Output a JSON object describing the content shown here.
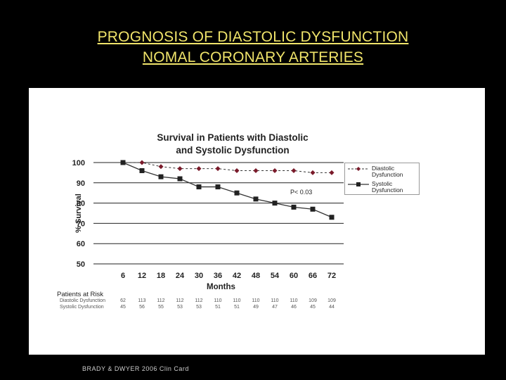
{
  "slide": {
    "title_line1": "PROGNOSIS OF DIASTOLIC DYSFUNCTION",
    "title_line2": "NOMAL CORONARY ARTERIES",
    "credit": "BRADY & DWYER 2006 Clin Card",
    "colors": {
      "background": "#000000",
      "title": "#f0e46a"
    }
  },
  "chart_data": {
    "type": "line",
    "title_line1": "Survival in Patients with Diastolic",
    "title_line2": "and Systolic Dysfunction",
    "xlabel": "Months",
    "ylabel": "% Survival",
    "x": [
      6,
      12,
      18,
      24,
      30,
      36,
      42,
      48,
      54,
      60,
      66,
      72
    ],
    "xticks": [
      "6",
      "12",
      "18",
      "24",
      "30",
      "36",
      "42",
      "48",
      "54",
      "60",
      "66",
      "72"
    ],
    "yticks": [
      100,
      90,
      80,
      70,
      60,
      50
    ],
    "ylim": [
      50,
      100
    ],
    "grid": "horizontal",
    "annotation": "P< 0.03",
    "legend_position": "top-right",
    "series": [
      {
        "name": "Diastolic Dysfunction",
        "marker": "diamond",
        "line": "dashed",
        "values": [
          100,
          100,
          98,
          97,
          97,
          97,
          96,
          96,
          96,
          96,
          95,
          95
        ]
      },
      {
        "name": "Systolic Dysfunction",
        "marker": "square",
        "line": "solid",
        "values": [
          100,
          96,
          93,
          92,
          88,
          88,
          85,
          82,
          80,
          78,
          77,
          73
        ]
      }
    ],
    "patients_at_risk": {
      "header": "Patients at Risk",
      "rows": [
        {
          "label": "Diastolic Dysfunction",
          "values": [
            "62",
            "113",
            "112",
            "112",
            "112",
            "110",
            "110",
            "110",
            "110",
            "110",
            "109",
            "109"
          ]
        },
        {
          "label": "Systolic Dysfunction",
          "values": [
            "45",
            "56",
            "55",
            "53",
            "53",
            "51",
            "51",
            "49",
            "47",
            "46",
            "45",
            "44"
          ]
        }
      ]
    }
  }
}
